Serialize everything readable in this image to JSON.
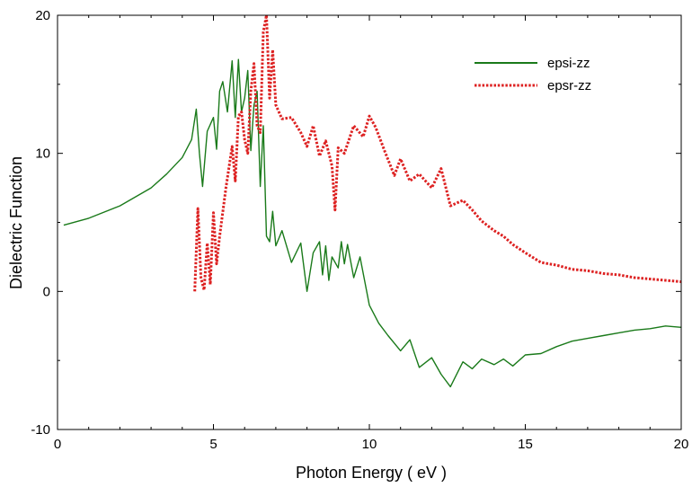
{
  "chart_data": {
    "type": "line",
    "title": "",
    "xlabel": "Photon Energy ( eV )",
    "ylabel": "Dielectric Function",
    "xlim": [
      0,
      20
    ],
    "ylim": [
      -10,
      20
    ],
    "x_ticks": [
      0,
      5,
      10,
      15,
      20
    ],
    "x_tick_labels": [
      "0",
      "5",
      "10",
      "15",
      "20"
    ],
    "y_ticks": [
      -10,
      0,
      10,
      20
    ],
    "y_tick_labels": [
      "-10",
      "0",
      "10",
      "20"
    ],
    "grid": false,
    "legend_position": "top-right",
    "series": [
      {
        "name": "epsi-zz",
        "color": "#1a7a1a",
        "style": "solid",
        "x": [
          0.2,
          1.0,
          2.0,
          3.0,
          3.5,
          4.0,
          4.3,
          4.45,
          4.55,
          4.65,
          4.8,
          5.0,
          5.1,
          5.2,
          5.3,
          5.45,
          5.6,
          5.7,
          5.8,
          5.9,
          6.0,
          6.1,
          6.2,
          6.3,
          6.4,
          6.5,
          6.6,
          6.7,
          6.8,
          6.9,
          7.0,
          7.2,
          7.5,
          7.8,
          8.0,
          8.2,
          8.4,
          8.5,
          8.6,
          8.7,
          8.8,
          9.0,
          9.1,
          9.2,
          9.3,
          9.5,
          9.7,
          10.0,
          10.3,
          10.6,
          11.0,
          11.3,
          11.6,
          12.0,
          12.3,
          12.6,
          13.0,
          13.3,
          13.6,
          14.0,
          14.3,
          14.6,
          15.0,
          15.5,
          16.0,
          16.5,
          17.0,
          17.5,
          18.0,
          18.5,
          19.0,
          19.5,
          20.0
        ],
        "values": [
          4.8,
          5.3,
          6.2,
          7.5,
          8.5,
          9.7,
          11.0,
          13.2,
          10.0,
          7.6,
          11.6,
          12.6,
          10.3,
          14.5,
          15.2,
          13.0,
          16.7,
          12.6,
          16.8,
          13.0,
          14.0,
          16.0,
          10.2,
          13.5,
          14.5,
          7.6,
          12.0,
          4.0,
          3.6,
          5.8,
          3.3,
          4.4,
          2.1,
          3.5,
          0.0,
          2.8,
          3.6,
          1.2,
          3.3,
          0.8,
          2.5,
          1.7,
          3.6,
          2.0,
          3.4,
          1.0,
          2.5,
          -1.0,
          -2.3,
          -3.2,
          -4.3,
          -3.5,
          -5.5,
          -4.8,
          -6.0,
          -6.9,
          -5.1,
          -5.6,
          -4.9,
          -5.3,
          -4.9,
          -5.4,
          -4.6,
          -4.5,
          -4.0,
          -3.6,
          -3.4,
          -3.2,
          -3.0,
          -2.8,
          -2.7,
          -2.5,
          -2.6
        ]
      },
      {
        "name": "epsr-zz",
        "color": "#dd2222",
        "style": "dotted",
        "x": [
          4.4,
          4.5,
          4.6,
          4.7,
          4.8,
          4.9,
          5.0,
          5.1,
          5.2,
          5.4,
          5.6,
          5.7,
          5.8,
          5.9,
          6.0,
          6.1,
          6.2,
          6.3,
          6.4,
          6.5,
          6.6,
          6.7,
          6.8,
          6.9,
          7.0,
          7.2,
          7.5,
          7.8,
          8.0,
          8.2,
          8.4,
          8.6,
          8.8,
          8.9,
          9.0,
          9.2,
          9.5,
          9.8,
          10.0,
          10.2,
          10.5,
          10.8,
          11.0,
          11.3,
          11.6,
          12.0,
          12.3,
          12.6,
          13.0,
          13.3,
          13.6,
          14.0,
          14.3,
          14.6,
          15.0,
          15.5,
          16.0,
          16.5,
          17.0,
          17.5,
          18.0,
          18.5,
          19.0,
          19.5,
          20.0
        ],
        "values": [
          0.0,
          6.0,
          1.0,
          0.1,
          3.5,
          0.5,
          5.7,
          2.0,
          4.0,
          7.5,
          10.5,
          8.0,
          12.7,
          13.0,
          11.0,
          10.0,
          14.5,
          16.5,
          12.0,
          11.5,
          18.8,
          20.0,
          14.0,
          17.5,
          13.5,
          12.5,
          12.6,
          11.5,
          10.5,
          12.0,
          9.8,
          10.9,
          9.1,
          5.9,
          10.4,
          10.0,
          12.0,
          11.2,
          12.7,
          11.9,
          10.1,
          8.4,
          9.6,
          8.0,
          8.5,
          7.5,
          8.9,
          6.2,
          6.6,
          5.9,
          5.1,
          4.4,
          4.0,
          3.4,
          2.8,
          2.1,
          1.9,
          1.6,
          1.5,
          1.3,
          1.2,
          1.0,
          0.9,
          0.8,
          0.7
        ]
      }
    ]
  }
}
